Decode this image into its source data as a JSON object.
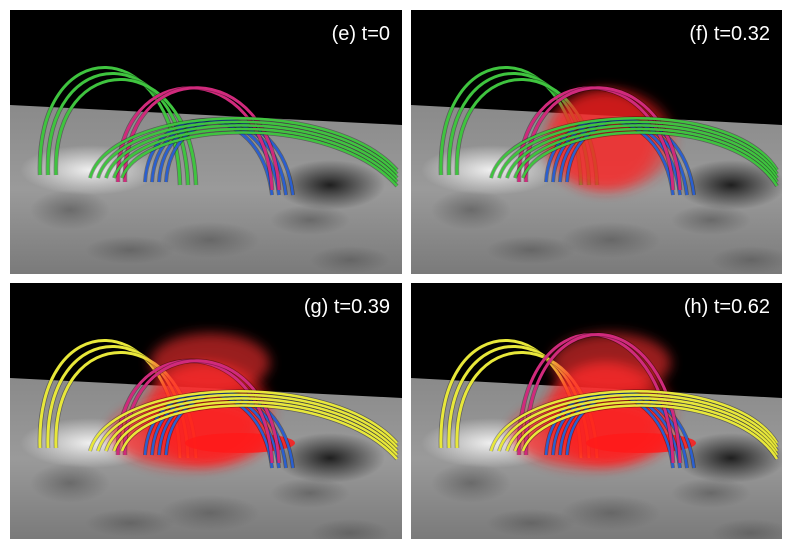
{
  "panels": [
    {
      "label": "(e) t=0"
    },
    {
      "label": "(f) t=0.32"
    },
    {
      "label": "(g) t=0.39"
    },
    {
      "label": "(h) t=0.62"
    }
  ]
}
